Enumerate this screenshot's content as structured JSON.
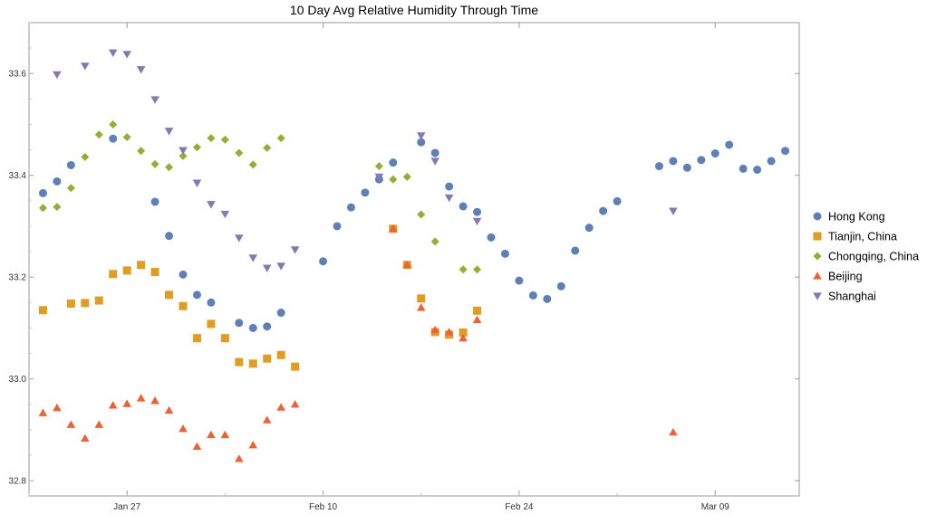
{
  "chart_data": {
    "type": "scatter",
    "title": "10 Day Avg Relative Humidity Through Time",
    "xlabel": "",
    "ylabel": "",
    "x_axis_type": "date",
    "xlim": [
      "2024-01-20",
      "2024-03-15"
    ],
    "ylim": [
      32.77,
      33.7
    ],
    "x_ticks": [
      {
        "date": "2024-01-27",
        "label": "Jan 27"
      },
      {
        "date": "2024-02-10",
        "label": "Feb 10"
      },
      {
        "date": "2024-02-24",
        "label": "Feb 24"
      },
      {
        "date": "2024-03-09",
        "label": "Mar 09"
      }
    ],
    "y_ticks": [
      32.8,
      33.0,
      33.2,
      33.4,
      33.6
    ],
    "y_tick_labels": [
      "32.8",
      "33.0",
      "33.2",
      "33.4",
      "33.6"
    ],
    "grid": false,
    "frame": true,
    "legend_position": "right",
    "series": [
      {
        "name": "Hong Kong",
        "marker": "circle",
        "color": "#5e81b5",
        "points": [
          [
            "2024-01-21",
            33.365
          ],
          [
            "2024-01-22",
            33.388
          ],
          [
            "2024-01-23",
            33.42
          ],
          [
            "2024-01-26",
            33.472
          ],
          [
            "2024-01-29",
            33.348
          ],
          [
            "2024-01-30",
            33.281
          ],
          [
            "2024-01-31",
            33.205
          ],
          [
            "2024-02-01",
            33.165
          ],
          [
            "2024-02-02",
            33.15
          ],
          [
            "2024-02-04",
            33.11
          ],
          [
            "2024-02-05",
            33.1
          ],
          [
            "2024-02-06",
            33.103
          ],
          [
            "2024-02-07",
            33.13
          ],
          [
            "2024-02-10",
            33.231
          ],
          [
            "2024-02-11",
            33.3
          ],
          [
            "2024-02-12",
            33.337
          ],
          [
            "2024-02-13",
            33.366
          ],
          [
            "2024-02-14",
            33.392
          ],
          [
            "2024-02-15",
            33.425
          ],
          [
            "2024-02-17",
            33.465
          ],
          [
            "2024-02-18",
            33.444
          ],
          [
            "2024-02-19",
            33.378
          ],
          [
            "2024-02-20",
            33.339
          ],
          [
            "2024-02-21",
            33.328
          ],
          [
            "2024-02-22",
            33.278
          ],
          [
            "2024-02-23",
            33.246
          ],
          [
            "2024-02-24",
            33.193
          ],
          [
            "2024-02-25",
            33.164
          ],
          [
            "2024-02-26",
            33.157
          ],
          [
            "2024-02-27",
            33.182
          ],
          [
            "2024-02-28",
            33.252
          ],
          [
            "2024-02-29",
            33.297
          ],
          [
            "2024-03-01",
            33.33
          ],
          [
            "2024-03-02",
            33.349
          ],
          [
            "2024-03-05",
            33.418
          ],
          [
            "2024-03-06",
            33.428
          ],
          [
            "2024-03-07",
            33.415
          ],
          [
            "2024-03-08",
            33.43
          ],
          [
            "2024-03-09",
            33.443
          ],
          [
            "2024-03-10",
            33.46
          ],
          [
            "2024-03-11",
            33.413
          ],
          [
            "2024-03-12",
            33.411
          ],
          [
            "2024-03-13",
            33.428
          ],
          [
            "2024-03-14",
            33.448
          ]
        ]
      },
      {
        "name": "Tianjin, China",
        "marker": "square",
        "color": "#e19c24",
        "points": [
          [
            "2024-01-21",
            33.135
          ],
          [
            "2024-01-23",
            33.148
          ],
          [
            "2024-01-24",
            33.149
          ],
          [
            "2024-01-25",
            33.154
          ],
          [
            "2024-01-26",
            33.206
          ],
          [
            "2024-01-27",
            33.213
          ],
          [
            "2024-01-28",
            33.224
          ],
          [
            "2024-01-29",
            33.21
          ],
          [
            "2024-01-30",
            33.165
          ],
          [
            "2024-01-31",
            33.143
          ],
          [
            "2024-02-01",
            33.08
          ],
          [
            "2024-02-02",
            33.108
          ],
          [
            "2024-02-03",
            33.08
          ],
          [
            "2024-02-04",
            33.033
          ],
          [
            "2024-02-05",
            33.03
          ],
          [
            "2024-02-06",
            33.04
          ],
          [
            "2024-02-07",
            33.047
          ],
          [
            "2024-02-08",
            33.024
          ],
          [
            "2024-02-15",
            33.295
          ],
          [
            "2024-02-16",
            33.224
          ],
          [
            "2024-02-17",
            33.158
          ],
          [
            "2024-02-18",
            33.092
          ],
          [
            "2024-02-19",
            33.087
          ],
          [
            "2024-02-20",
            33.091
          ],
          [
            "2024-02-21",
            33.134
          ]
        ]
      },
      {
        "name": "Chongqing, China",
        "marker": "diamond",
        "color": "#8fb032",
        "points": [
          [
            "2024-01-21",
            33.336
          ],
          [
            "2024-01-22",
            33.338
          ],
          [
            "2024-01-23",
            33.375
          ],
          [
            "2024-01-24",
            33.436
          ],
          [
            "2024-01-25",
            33.48
          ],
          [
            "2024-01-26",
            33.5
          ],
          [
            "2024-01-27",
            33.475
          ],
          [
            "2024-01-28",
            33.448
          ],
          [
            "2024-01-29",
            33.422
          ],
          [
            "2024-01-30",
            33.416
          ],
          [
            "2024-01-31",
            33.438
          ],
          [
            "2024-02-01",
            33.455
          ],
          [
            "2024-02-02",
            33.473
          ],
          [
            "2024-02-03",
            33.47
          ],
          [
            "2024-02-04",
            33.444
          ],
          [
            "2024-02-05",
            33.421
          ],
          [
            "2024-02-06",
            33.454
          ],
          [
            "2024-02-07",
            33.473
          ],
          [
            "2024-02-14",
            33.418
          ],
          [
            "2024-02-15",
            33.392
          ],
          [
            "2024-02-16",
            33.397
          ],
          [
            "2024-02-17",
            33.323
          ],
          [
            "2024-02-18",
            33.27
          ],
          [
            "2024-02-20",
            33.215
          ],
          [
            "2024-02-21",
            33.215
          ]
        ]
      },
      {
        "name": "Beijing",
        "marker": "triangle-up",
        "color": "#eb6235",
        "points": [
          [
            "2024-01-21",
            32.933
          ],
          [
            "2024-01-22",
            32.943
          ],
          [
            "2024-01-23",
            32.91
          ],
          [
            "2024-01-24",
            32.883
          ],
          [
            "2024-01-25",
            32.91
          ],
          [
            "2024-01-26",
            32.948
          ],
          [
            "2024-01-27",
            32.951
          ],
          [
            "2024-01-28",
            32.962
          ],
          [
            "2024-01-29",
            32.957
          ],
          [
            "2024-01-30",
            32.938
          ],
          [
            "2024-01-31",
            32.902
          ],
          [
            "2024-02-01",
            32.867
          ],
          [
            "2024-02-02",
            32.89
          ],
          [
            "2024-02-03",
            32.89
          ],
          [
            "2024-02-04",
            32.843
          ],
          [
            "2024-02-05",
            32.87
          ],
          [
            "2024-02-06",
            32.919
          ],
          [
            "2024-02-07",
            32.944
          ],
          [
            "2024-02-08",
            32.95
          ],
          [
            "2024-02-15",
            33.295
          ],
          [
            "2024-02-16",
            33.224
          ],
          [
            "2024-02-17",
            33.14
          ],
          [
            "2024-02-18",
            33.096
          ],
          [
            "2024-02-19",
            33.092
          ],
          [
            "2024-02-20",
            33.08
          ],
          [
            "2024-02-21",
            33.116
          ],
          [
            "2024-03-06",
            32.895
          ]
        ]
      },
      {
        "name": "Shanghai",
        "marker": "triangle-down",
        "color": "#8778b3",
        "points": [
          [
            "2024-01-22",
            33.598
          ],
          [
            "2024-01-24",
            33.615
          ],
          [
            "2024-01-26",
            33.641
          ],
          [
            "2024-01-27",
            33.638
          ],
          [
            "2024-01-28",
            33.608
          ],
          [
            "2024-01-29",
            33.549
          ],
          [
            "2024-01-30",
            33.487
          ],
          [
            "2024-01-31",
            33.449
          ],
          [
            "2024-02-01",
            33.385
          ],
          [
            "2024-02-02",
            33.343
          ],
          [
            "2024-02-03",
            33.324
          ],
          [
            "2024-02-04",
            33.277
          ],
          [
            "2024-02-05",
            33.238
          ],
          [
            "2024-02-06",
            33.218
          ],
          [
            "2024-02-07",
            33.222
          ],
          [
            "2024-02-08",
            33.254
          ],
          [
            "2024-02-14",
            33.397
          ],
          [
            "2024-02-17",
            33.478
          ],
          [
            "2024-02-18",
            33.428
          ],
          [
            "2024-02-19",
            33.356
          ],
          [
            "2024-02-21",
            33.31
          ],
          [
            "2024-03-06",
            33.33
          ]
        ]
      }
    ]
  }
}
